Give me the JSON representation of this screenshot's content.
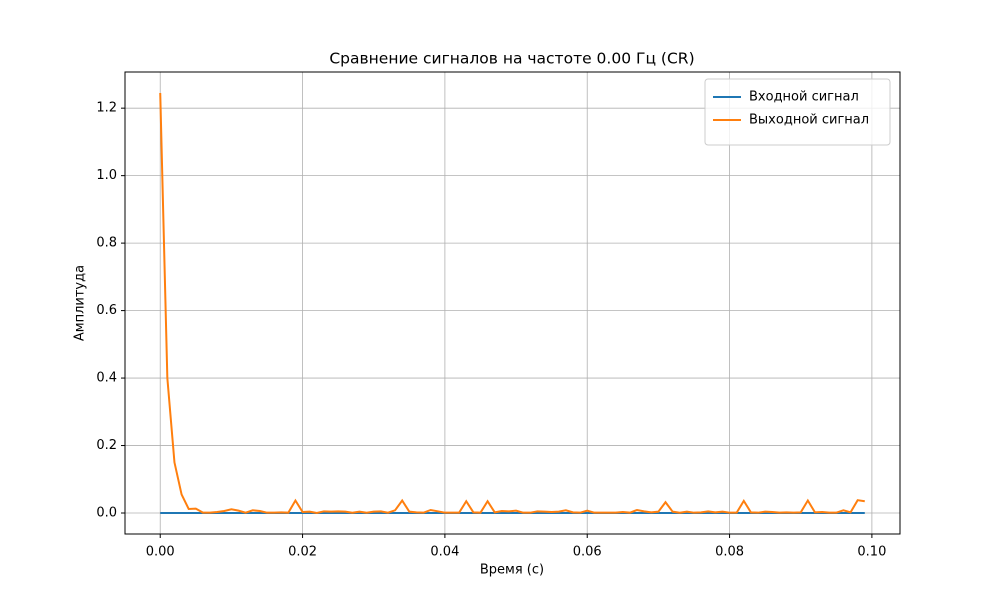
{
  "chart_data": {
    "type": "line",
    "title": "Сравнение сигналов на частоте 0.00 Гц (CR)",
    "xlabel": "Время (с)",
    "ylabel": "Амплитуда",
    "x": [
      0,
      0.001,
      0.002,
      0.003,
      0.004,
      0.005,
      0.006,
      0.007,
      0.008,
      0.009,
      0.01,
      0.011,
      0.012,
      0.013,
      0.014,
      0.015,
      0.016,
      0.017,
      0.018,
      0.019,
      0.02,
      0.021,
      0.022,
      0.023,
      0.024,
      0.025,
      0.026,
      0.027,
      0.028,
      0.029,
      0.03,
      0.031,
      0.032,
      0.033,
      0.034,
      0.035,
      0.036,
      0.037,
      0.038,
      0.039,
      0.04,
      0.041,
      0.042,
      0.043,
      0.044,
      0.045,
      0.046,
      0.047,
      0.048,
      0.049,
      0.05,
      0.051,
      0.052,
      0.053,
      0.054,
      0.055,
      0.056,
      0.057,
      0.058,
      0.059,
      0.06,
      0.061,
      0.062,
      0.063,
      0.064,
      0.065,
      0.066,
      0.067,
      0.068,
      0.069,
      0.07,
      0.071,
      0.072,
      0.073,
      0.074,
      0.075,
      0.076,
      0.077,
      0.078,
      0.079,
      0.08,
      0.081,
      0.082,
      0.083,
      0.084,
      0.085,
      0.086,
      0.087,
      0.088,
      0.089,
      0.09,
      0.091,
      0.092,
      0.093,
      0.094,
      0.095,
      0.096,
      0.097,
      0.098,
      0.099
    ],
    "series": [
      {
        "name": "Входной сигнал",
        "color": "#1f77b4",
        "values": [
          0,
          0,
          0,
          0,
          0,
          0,
          0,
          0,
          0,
          0,
          0,
          0,
          0,
          0,
          0,
          0,
          0,
          0,
          0,
          0,
          0,
          0,
          0,
          0,
          0,
          0,
          0,
          0,
          0,
          0,
          0,
          0,
          0,
          0,
          0,
          0,
          0,
          0,
          0,
          0,
          0,
          0,
          0,
          0,
          0,
          0,
          0,
          0,
          0,
          0,
          0,
          0,
          0,
          0,
          0,
          0,
          0,
          0,
          0,
          0,
          0,
          0,
          0,
          0,
          0,
          0,
          0,
          0,
          0,
          0,
          0,
          0,
          0,
          0,
          0,
          0,
          0,
          0,
          0,
          0,
          0,
          0,
          0,
          0,
          0,
          0,
          0,
          0,
          0,
          0,
          0,
          0,
          0,
          0,
          0,
          0,
          0,
          0,
          0,
          0
        ]
      },
      {
        "name": "Выходной сигнал",
        "color": "#ff7f0e",
        "values": [
          1.245,
          0.4,
          0.15,
          0.055,
          0.012,
          0.013,
          0.001,
          0.001,
          0.003,
          0.006,
          0.011,
          0.007,
          0.001,
          0.008,
          0.006,
          0.001,
          0.001,
          0.002,
          0.001,
          0.037,
          0.003,
          0.004,
          0,
          0.005,
          0.004,
          0.005,
          0.004,
          0.001,
          0.004,
          0.001,
          0.004,
          0.005,
          0.001,
          0.008,
          0.037,
          0.004,
          0.002,
          0.001,
          0.009,
          0.005,
          0.001,
          0.001,
          0.001,
          0.035,
          0.002,
          0.001,
          0.035,
          0.002,
          0.006,
          0.005,
          0.007,
          0.001,
          0.001,
          0.005,
          0.004,
          0.003,
          0.004,
          0.008,
          0.002,
          0.001,
          0.007,
          0.001,
          0.001,
          0.001,
          0.001,
          0.003,
          0.001,
          0.009,
          0.005,
          0.002,
          0.004,
          0.032,
          0.004,
          0.001,
          0.004,
          0.001,
          0.002,
          0.005,
          0.002,
          0.004,
          0.001,
          0.001,
          0.036,
          0.002,
          0.001,
          0.004,
          0.003,
          0.001,
          0.002,
          0.001,
          0.002,
          0.037,
          0.002,
          0.003,
          0.001,
          0.001,
          0.008,
          0.002,
          0.038,
          0.035
        ]
      }
    ],
    "xlim": [
      -0.00495,
      0.10395
    ],
    "xticks": [
      {
        "value": 0,
        "label": "0.00"
      },
      0.02,
      0.04,
      0.06,
      0.08,
      {
        "value": 0.1,
        "label": "0.10"
      }
    ],
    "ylim": [
      -0.0622,
      1.3072
    ],
    "yticks": [
      {
        "value": 0,
        "label": "0.0"
      },
      0.2,
      0.4,
      0.6,
      0.8,
      {
        "value": 1,
        "label": "1.0"
      },
      1.2
    ],
    "grid": true,
    "legend": "upper right"
  }
}
